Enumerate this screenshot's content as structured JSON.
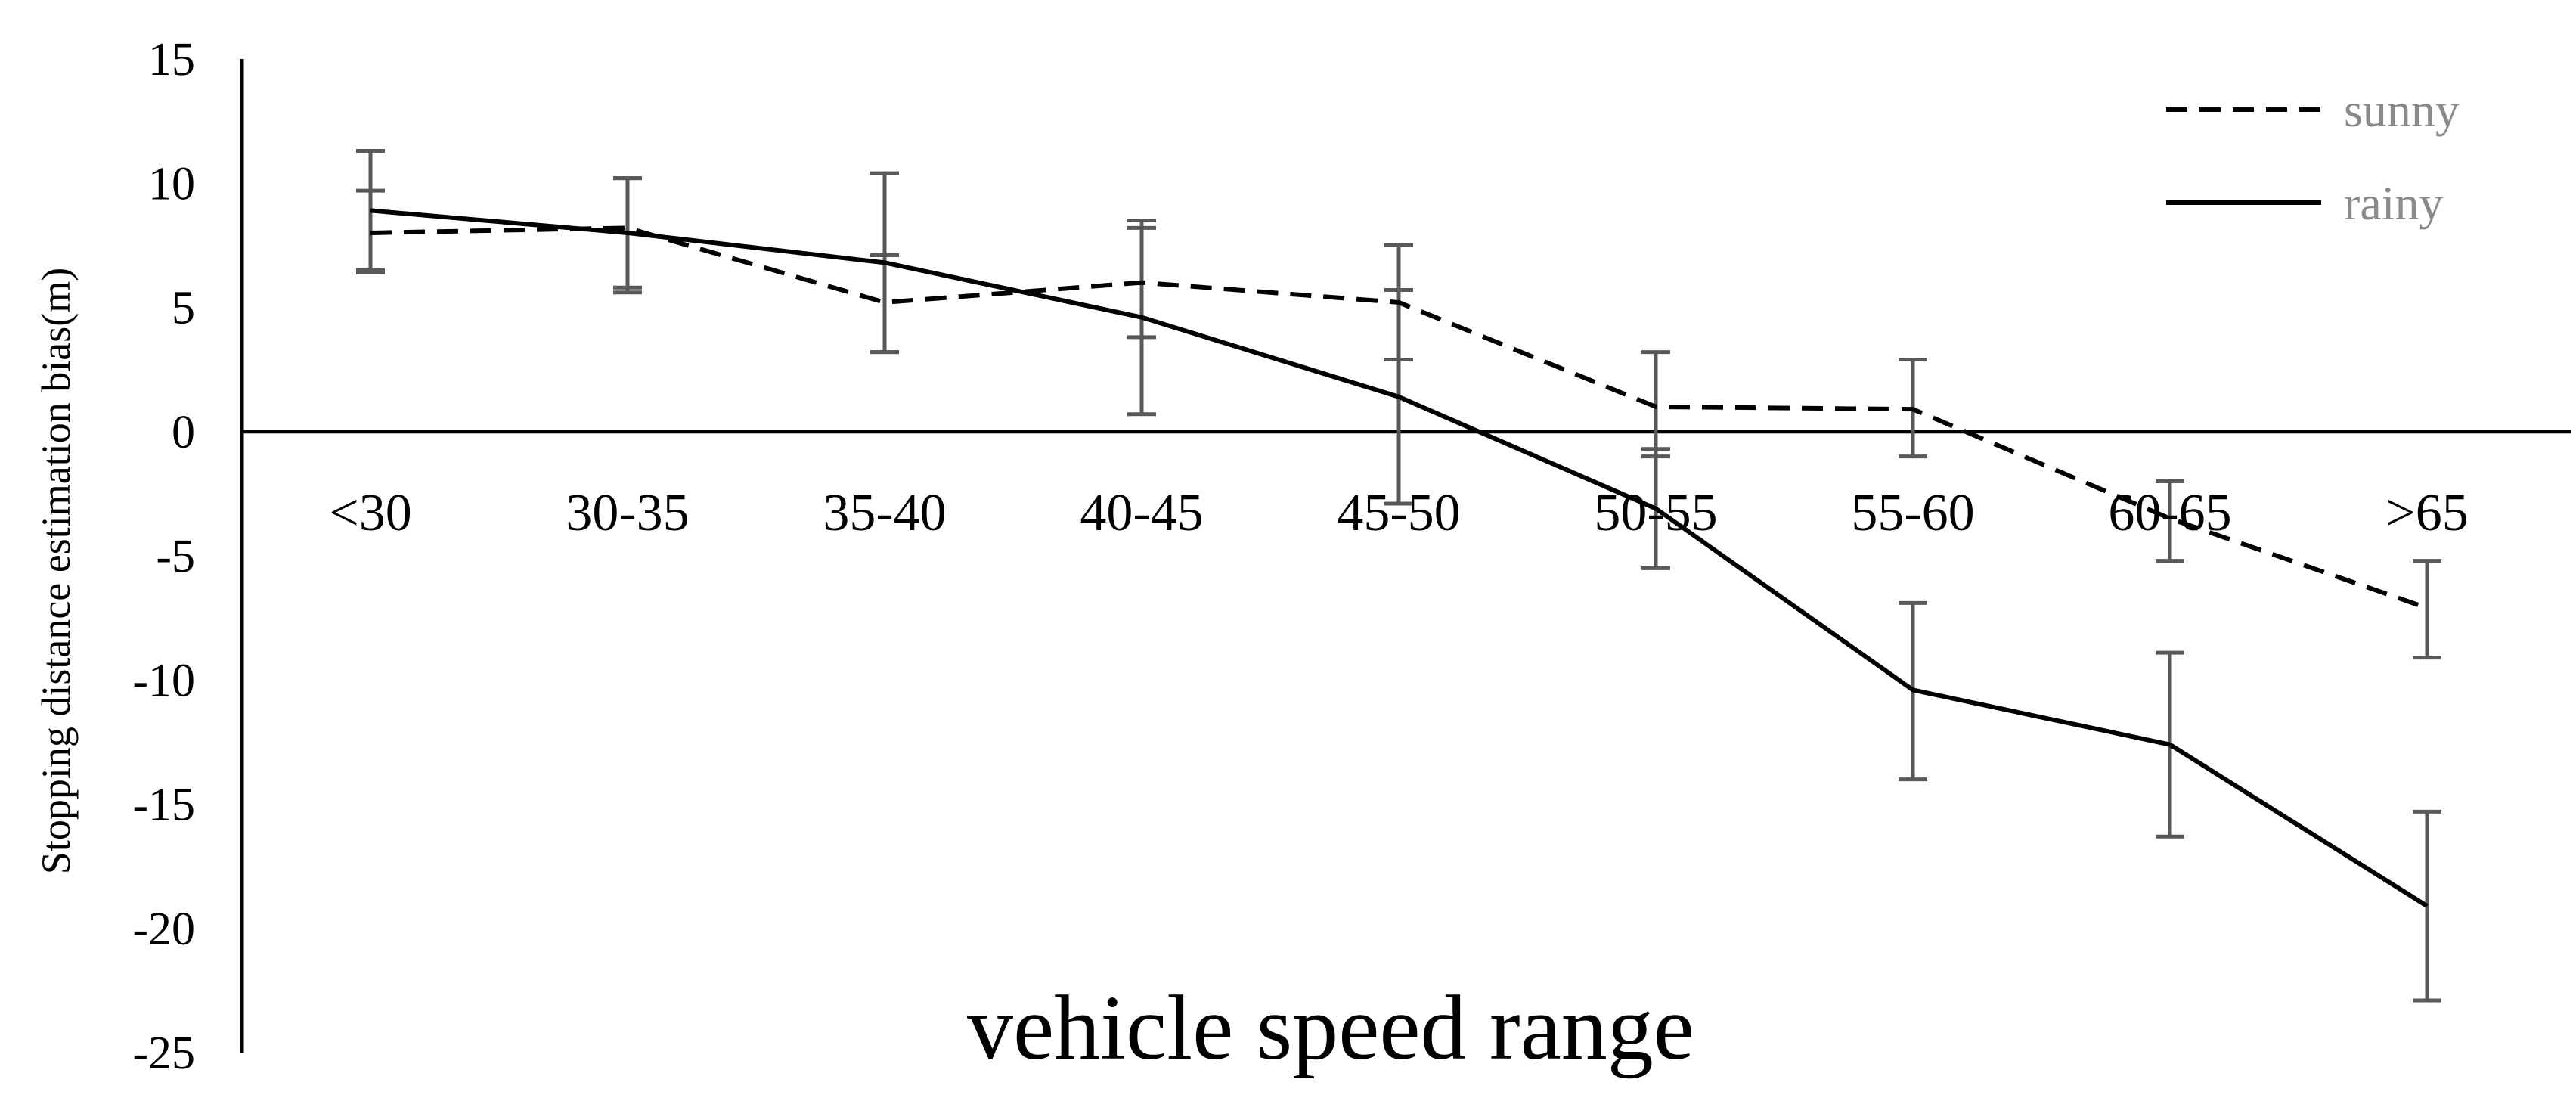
{
  "chart_data": {
    "type": "line",
    "xlabel": "vehicle speed range",
    "ylabel": "Stopping distance estimation bias(m)",
    "ylim": [
      -25,
      15
    ],
    "yticks": [
      15,
      10,
      5,
      0,
      -5,
      -10,
      -15,
      -20,
      -25
    ],
    "categories": [
      "<30",
      "30-35",
      "35-40",
      "40-45",
      "45-50",
      "50-55",
      "55-60",
      "60-65",
      ">65"
    ],
    "legend_position": "top-right",
    "grid": false,
    "series": [
      {
        "name": "sunny",
        "style": "dashed",
        "color": "#000000",
        "values": [
          8.0,
          8.2,
          5.2,
          6.0,
          5.2,
          1.0,
          0.9,
          -3.5,
          -7.1
        ],
        "error_low": [
          6.4,
          5.8,
          3.2,
          3.8,
          2.9,
          -1.0,
          -1.0,
          -5.2,
          -9.1
        ],
        "error_high": [
          9.7,
          10.2,
          7.1,
          8.5,
          7.5,
          3.2,
          2.9,
          -2.0,
          -5.2
        ]
      },
      {
        "name": "rainy",
        "style": "solid",
        "color": "#000000",
        "values": [
          8.9,
          8.0,
          6.8,
          4.6,
          1.4,
          -3.1,
          -10.4,
          -12.6,
          -19.1
        ],
        "error_low": [
          6.5,
          5.6,
          3.2,
          0.7,
          -2.9,
          -5.5,
          -14.0,
          -16.3,
          -22.9
        ],
        "error_high": [
          11.3,
          10.2,
          10.4,
          8.2,
          5.7,
          -0.7,
          -6.9,
          -8.9,
          -15.3
        ]
      }
    ],
    "error_bar_color": "#595959"
  }
}
